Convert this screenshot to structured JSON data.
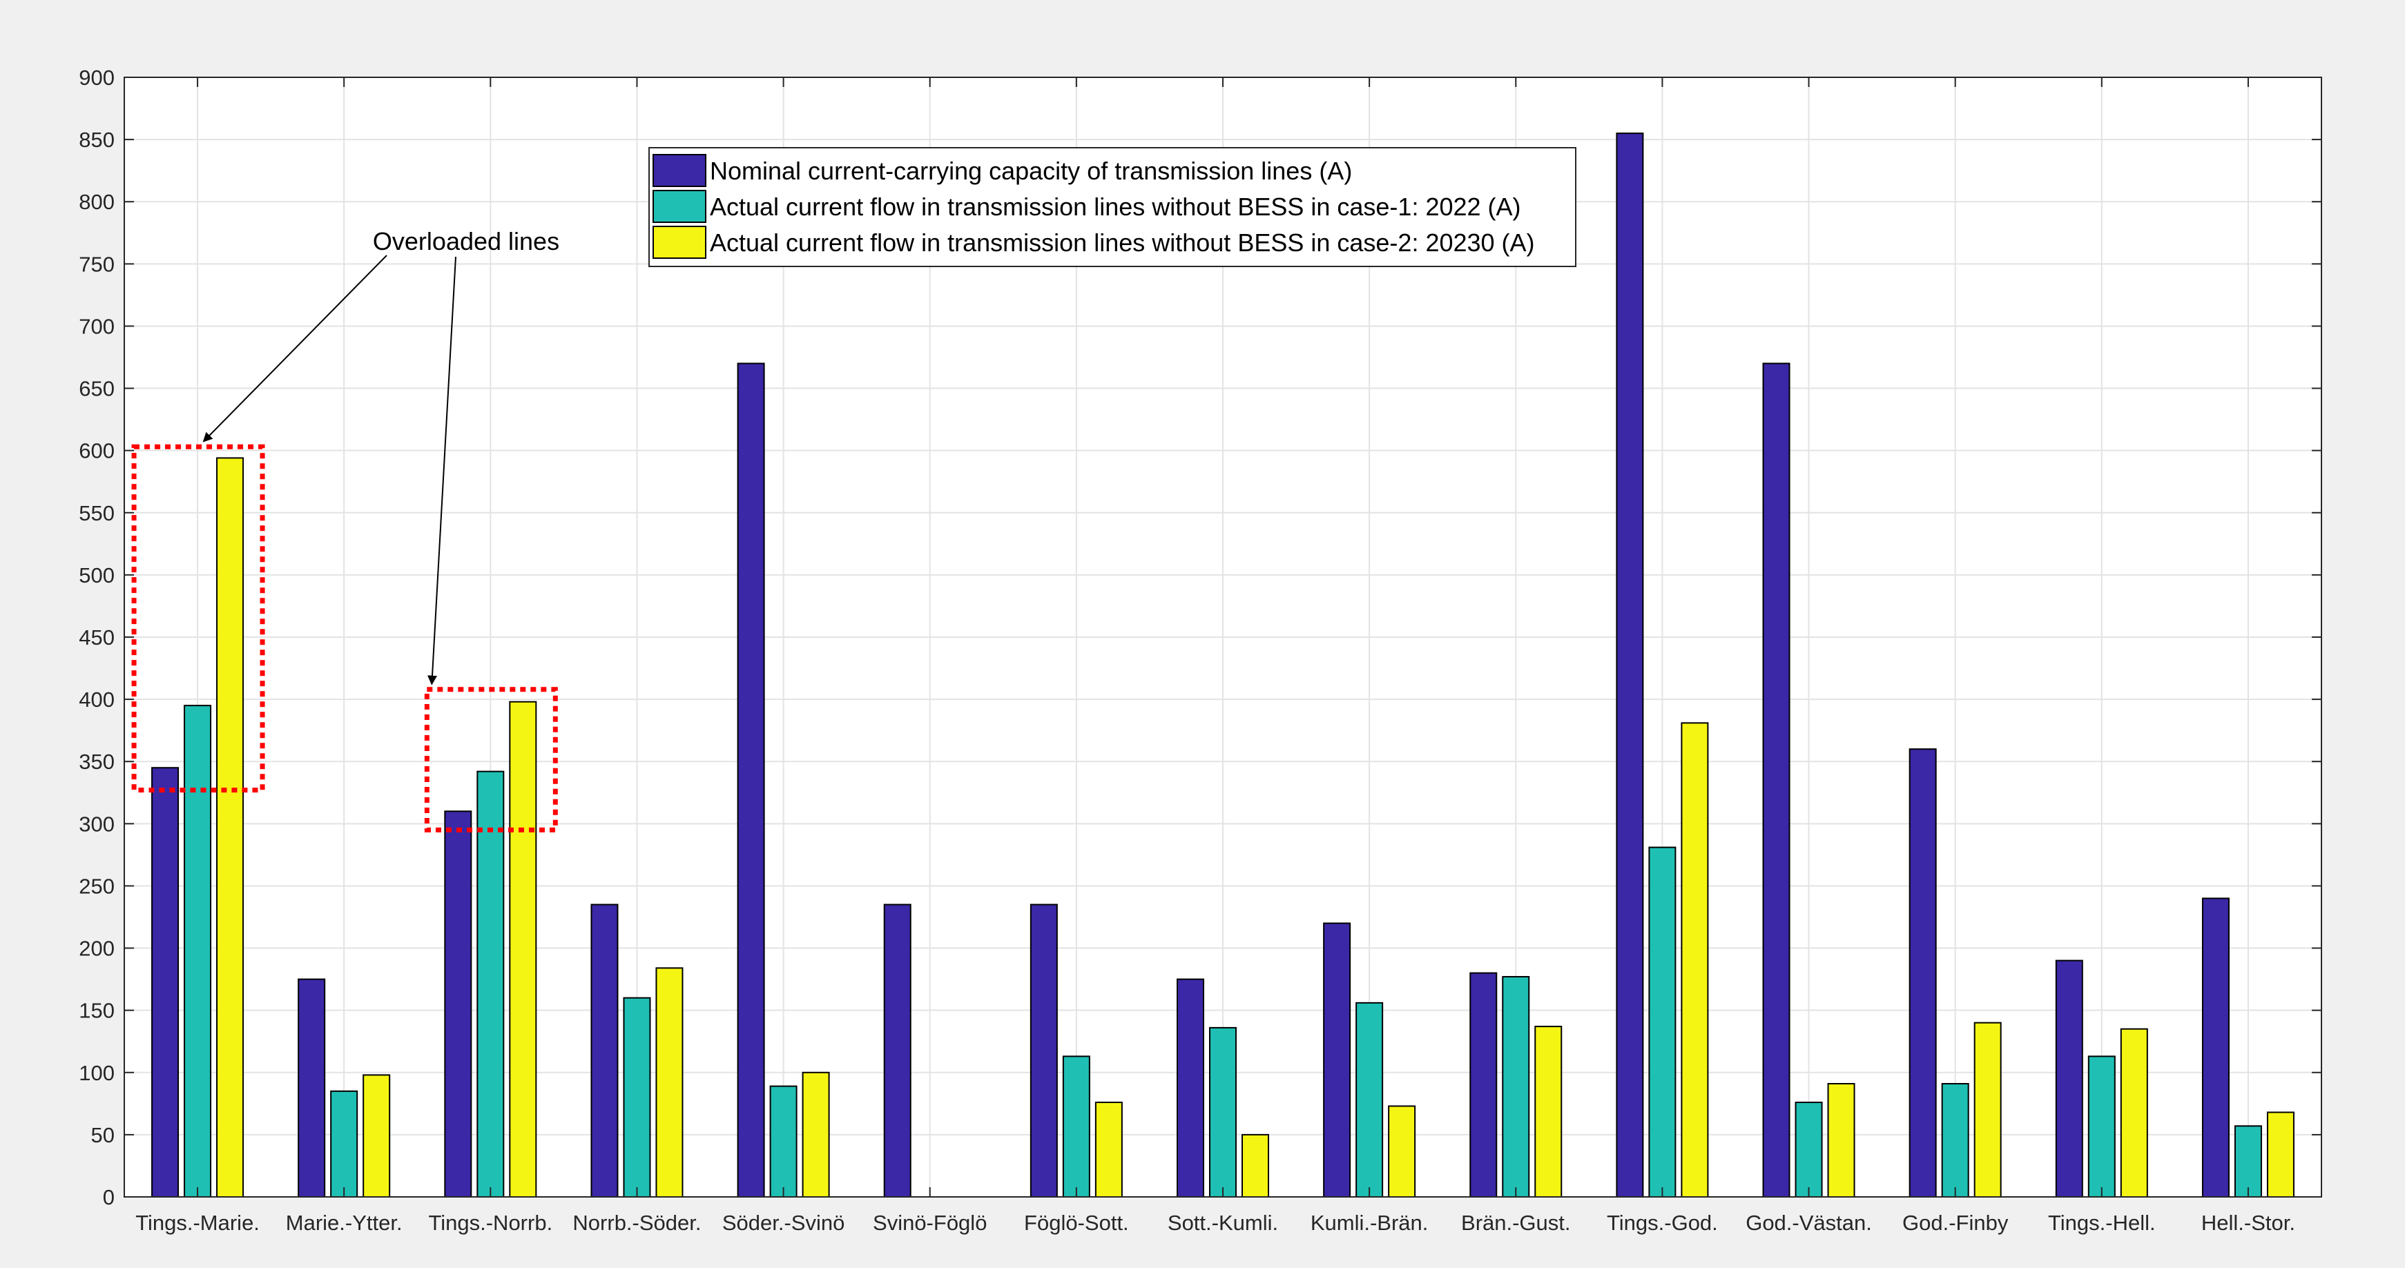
{
  "chart_data": {
    "type": "bar",
    "categories": [
      "Tings.-Marie.",
      "Marie.-Ytter.",
      "Tings.-Norrb.",
      "Norrb.-Söder.",
      "Söder.-Svinö",
      "Svinö-Föglö",
      "Föglö-Sott.",
      "Sott.-Kumli.",
      "Kumli.-Brän.",
      "Brän.-Gust.",
      "Tings.-God.",
      "God.-Västan.",
      "God.-Finby",
      "Tings.-Hell.",
      "Hell.-Stor."
    ],
    "series": [
      {
        "name": "Nominal current-carrying capacity of transmission lines (A)",
        "color": "#3a28a6",
        "values": [
          345,
          175,
          310,
          235,
          670,
          235,
          235,
          175,
          220,
          180,
          855,
          670,
          360,
          190,
          240
        ]
      },
      {
        "name": "Actual current flow in transmission lines without BESS in case-1: 2022 (A)",
        "color": "#1fbfb4",
        "values": [
          395,
          85,
          342,
          160,
          89,
          0,
          113,
          136,
          156,
          177,
          281,
          76,
          91,
          113,
          57
        ]
      },
      {
        "name": "Actual current flow in transmission lines without BESS in case-2: 20230 (A)",
        "color": "#f5f513",
        "values": [
          594,
          98,
          398,
          184,
          100,
          0,
          76,
          50,
          73,
          137,
          381,
          91,
          140,
          135,
          68
        ]
      }
    ],
    "y_ticks": [
      "0",
      "50",
      "100",
      "150",
      "200",
      "250",
      "300",
      "350",
      "400",
      "450",
      "500",
      "550",
      "600",
      "650",
      "700",
      "750",
      "800",
      "850",
      "900"
    ],
    "ylim": [
      0,
      900
    ],
    "grid": true,
    "legend_position": "top-center",
    "annotations": [
      {
        "text": "Overloaded lines",
        "highlight_boxes": [
          {
            "categories": [
              "Tings.-Marie."
            ],
            "y_range": [
              327,
              603
            ]
          },
          {
            "categories": [
              "Tings.-Norrb."
            ],
            "y_range": [
              295,
              408
            ]
          }
        ]
      }
    ]
  }
}
